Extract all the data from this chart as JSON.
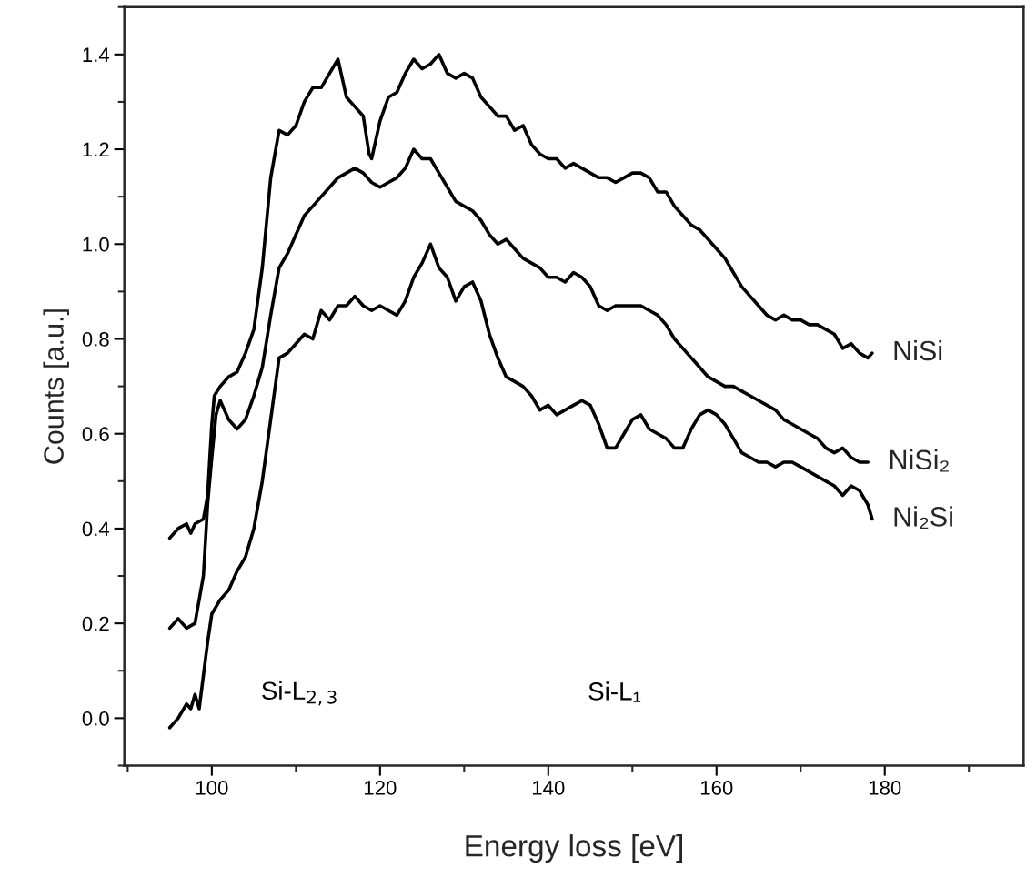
{
  "chart_data": {
    "type": "line",
    "xlabel": "Energy loss [eV]",
    "ylabel": "Counts [a.u.]",
    "xlim": [
      89.6,
      196.5
    ],
    "xticks": [
      100,
      120,
      140,
      160,
      180
    ],
    "ylim": [
      -0.1,
      1.5
    ],
    "yticks": [
      {
        "value": 0,
        "label": "0.0"
      },
      0.2,
      0.4,
      0.6,
      0.8,
      {
        "value": 1,
        "label": "1.0"
      },
      1.2,
      1.4
    ],
    "grid": false,
    "legend": false,
    "marker": "none",
    "line_style": "solid",
    "annotations": [
      "Si-L$_{2,3}$",
      "Si-L₁"
    ],
    "series": [
      {
        "name": "NiSi",
        "color": "#000000",
        "x": [
          95,
          96,
          97,
          97.5,
          98,
          99,
          99.5,
          100,
          100.3,
          101,
          102,
          103,
          104,
          105,
          106,
          107,
          108,
          109,
          110,
          111,
          112,
          113,
          114,
          115,
          115.5,
          116,
          117,
          118,
          118.7,
          119,
          119.5,
          120,
          121,
          122,
          123,
          124,
          125,
          126,
          127,
          128,
          129,
          130,
          131,
          132,
          133,
          134,
          135,
          136,
          137,
          138,
          139,
          140,
          141,
          142,
          143,
          144,
          145,
          146,
          147,
          148,
          149,
          150,
          151,
          152,
          153,
          154,
          155,
          156,
          157,
          158,
          159,
          160,
          161,
          162,
          163,
          164,
          165,
          166,
          167,
          168,
          169,
          170,
          171,
          172,
          173,
          174,
          175,
          176,
          177,
          178,
          178.5
        ],
        "values": [
          0.38,
          0.4,
          0.41,
          0.39,
          0.41,
          0.42,
          0.47,
          0.62,
          0.68,
          0.7,
          0.72,
          0.73,
          0.77,
          0.82,
          0.95,
          1.14,
          1.24,
          1.23,
          1.25,
          1.3,
          1.33,
          1.33,
          1.36,
          1.39,
          1.35,
          1.31,
          1.29,
          1.27,
          1.19,
          1.18,
          1.22,
          1.26,
          1.31,
          1.32,
          1.36,
          1.39,
          1.37,
          1.38,
          1.4,
          1.36,
          1.35,
          1.36,
          1.35,
          1.31,
          1.29,
          1.27,
          1.27,
          1.24,
          1.25,
          1.21,
          1.19,
          1.18,
          1.18,
          1.16,
          1.17,
          1.16,
          1.15,
          1.14,
          1.14,
          1.13,
          1.14,
          1.15,
          1.15,
          1.14,
          1.11,
          1.11,
          1.08,
          1.06,
          1.04,
          1.03,
          1.01,
          0.99,
          0.97,
          0.94,
          0.91,
          0.89,
          0.87,
          0.85,
          0.84,
          0.85,
          0.84,
          0.84,
          0.83,
          0.83,
          0.82,
          0.81,
          0.78,
          0.79,
          0.77,
          0.76,
          0.77
        ]
      },
      {
        "name": "NiSi₂",
        "color": "#000000",
        "x": [
          95,
          96,
          97,
          98,
          99,
          99.5,
          100,
          100.5,
          101,
          102,
          103,
          104,
          105,
          106,
          107,
          108,
          109,
          110,
          111,
          112,
          113,
          114,
          115,
          116,
          117,
          118,
          119,
          120,
          121,
          122,
          123,
          124,
          125,
          126,
          127,
          128,
          129,
          130,
          131,
          132,
          133,
          134,
          135,
          136,
          137,
          138,
          139,
          140,
          141,
          142,
          143,
          144,
          145,
          146,
          147,
          148,
          150,
          151,
          152,
          153,
          154,
          155,
          156,
          157,
          158,
          159,
          160,
          161,
          162,
          163,
          164,
          165,
          166,
          167,
          168,
          169,
          170,
          171,
          172,
          173,
          174,
          175,
          176,
          177,
          178
        ],
        "values": [
          0.19,
          0.21,
          0.19,
          0.2,
          0.3,
          0.45,
          0.55,
          0.64,
          0.67,
          0.63,
          0.61,
          0.63,
          0.68,
          0.74,
          0.85,
          0.95,
          0.98,
          1.02,
          1.06,
          1.08,
          1.1,
          1.12,
          1.14,
          1.15,
          1.16,
          1.15,
          1.13,
          1.12,
          1.13,
          1.14,
          1.16,
          1.2,
          1.18,
          1.18,
          1.15,
          1.12,
          1.09,
          1.08,
          1.07,
          1.05,
          1.02,
          1.0,
          1.01,
          0.99,
          0.97,
          0.96,
          0.95,
          0.93,
          0.93,
          0.92,
          0.94,
          0.93,
          0.91,
          0.87,
          0.86,
          0.87,
          0.87,
          0.87,
          0.86,
          0.85,
          0.83,
          0.8,
          0.78,
          0.76,
          0.74,
          0.72,
          0.71,
          0.7,
          0.7,
          0.69,
          0.68,
          0.67,
          0.66,
          0.65,
          0.63,
          0.62,
          0.61,
          0.6,
          0.59,
          0.57,
          0.56,
          0.57,
          0.55,
          0.54,
          0.54
        ]
      },
      {
        "name": "Ni₂Si",
        "color": "#000000",
        "x": [
          95,
          96,
          97,
          97.5,
          98,
          98.5,
          99,
          99.5,
          100,
          101,
          102,
          103,
          104,
          105,
          106,
          107,
          108,
          109,
          110,
          111,
          112,
          113,
          114,
          115,
          116,
          117,
          118,
          119,
          120,
          121,
          122,
          123,
          124,
          125,
          126,
          127,
          128,
          129,
          130,
          131,
          132,
          133,
          134,
          135,
          136,
          137,
          138,
          139,
          140,
          141,
          142,
          143,
          144,
          145,
          146,
          147,
          148,
          149,
          150,
          151,
          152,
          153,
          154,
          155,
          156,
          157,
          158,
          159,
          160,
          161,
          162,
          163,
          164,
          165,
          166,
          167,
          168,
          169,
          170,
          171,
          172,
          173,
          174,
          175,
          176,
          177,
          178,
          178.5
        ],
        "values": [
          -0.02,
          0.0,
          0.03,
          0.02,
          0.05,
          0.02,
          0.09,
          0.16,
          0.22,
          0.25,
          0.27,
          0.31,
          0.34,
          0.4,
          0.5,
          0.63,
          0.76,
          0.77,
          0.79,
          0.81,
          0.8,
          0.86,
          0.84,
          0.87,
          0.87,
          0.89,
          0.87,
          0.86,
          0.87,
          0.86,
          0.85,
          0.88,
          0.93,
          0.96,
          1.0,
          0.95,
          0.93,
          0.88,
          0.91,
          0.92,
          0.88,
          0.81,
          0.76,
          0.72,
          0.71,
          0.7,
          0.68,
          0.65,
          0.66,
          0.64,
          0.65,
          0.66,
          0.67,
          0.66,
          0.62,
          0.57,
          0.57,
          0.6,
          0.63,
          0.64,
          0.61,
          0.6,
          0.59,
          0.57,
          0.57,
          0.61,
          0.64,
          0.65,
          0.64,
          0.62,
          0.59,
          0.56,
          0.55,
          0.54,
          0.54,
          0.53,
          0.54,
          0.54,
          0.53,
          0.52,
          0.51,
          0.5,
          0.49,
          0.47,
          0.49,
          0.48,
          0.45,
          0.42
        ]
      }
    ]
  }
}
